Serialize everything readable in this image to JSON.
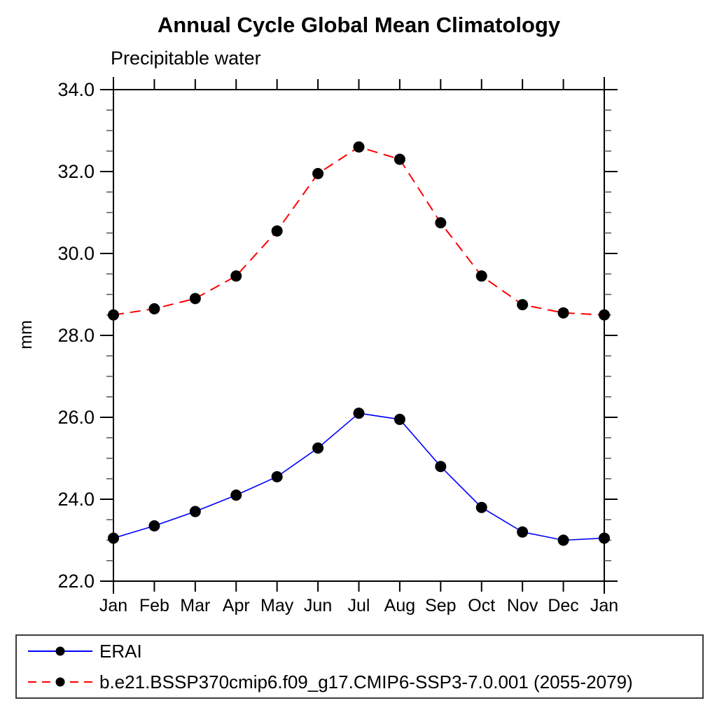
{
  "chart_data": {
    "type": "line",
    "title": "Annual Cycle Global Mean Climatology",
    "subtitle": "Precipitable water",
    "ylabel": "mm",
    "xlabel": "",
    "x_categories": [
      "Jan",
      "Feb",
      "Mar",
      "Apr",
      "May",
      "Jun",
      "Jul",
      "Aug",
      "Sep",
      "Oct",
      "Nov",
      "Dec",
      "Jan"
    ],
    "ylim": [
      22.0,
      34.0
    ],
    "y_major_ticks": [
      22.0,
      24.0,
      26.0,
      28.0,
      30.0,
      32.0,
      34.0
    ],
    "y_major_tick_labels": [
      "22.0",
      "24.0",
      "26.0",
      "28.0",
      "30.0",
      "32.0",
      "34.0"
    ],
    "y_minor_step": 0.5,
    "grid": false,
    "legend_position": "bottom-outside-box",
    "axis_color": "#000000",
    "marker_color": "#000000",
    "series": [
      {
        "name": "ERAI",
        "color": "#0000ff",
        "line_style": "solid",
        "marker": "filled-circle",
        "values": [
          23.05,
          23.35,
          23.7,
          24.1,
          24.55,
          25.25,
          26.1,
          25.95,
          24.8,
          23.8,
          23.2,
          23.0,
          23.05
        ]
      },
      {
        "name": "b.e21.BSSP370cmip6.f09_g17.CMIP6-SSP3-7.0.001 (2055-2079)",
        "color": "#ff0000",
        "line_style": "dashed",
        "marker": "filled-circle",
        "values": [
          28.5,
          28.65,
          28.9,
          29.45,
          30.55,
          31.95,
          32.6,
          32.3,
          30.75,
          29.45,
          28.75,
          28.55,
          28.5
        ]
      }
    ]
  }
}
